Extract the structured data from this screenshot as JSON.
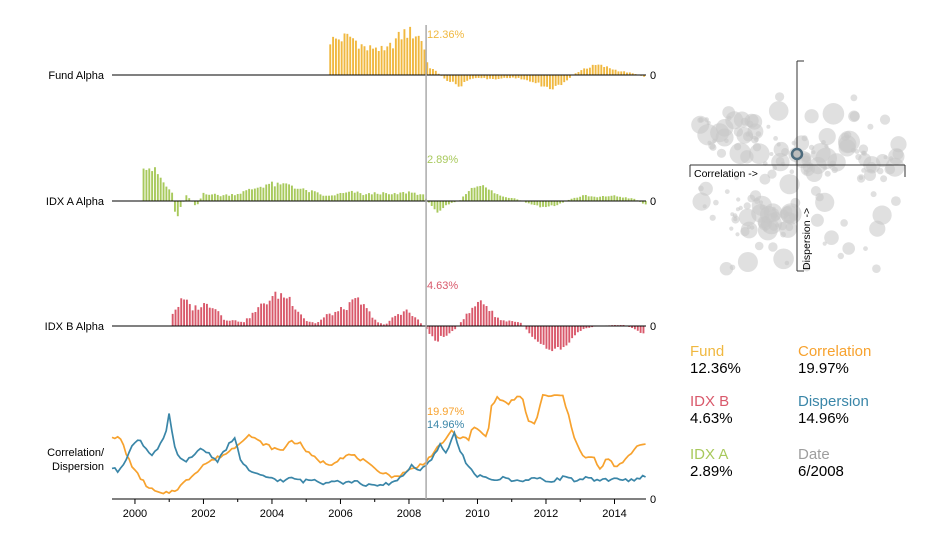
{
  "chart_data": {
    "type": "bar",
    "time_start": 1999.33,
    "time_end": 2014.92,
    "time_step": 0.0833,
    "xaxis": {
      "ticks": [
        2000,
        2002,
        2004,
        2006,
        2008,
        2010,
        2012,
        2014
      ],
      "labels": [
        "2000",
        "2002",
        "2004",
        "2006",
        "2008",
        "2010",
        "2012",
        "2014"
      ]
    },
    "hover_time": 2008.5,
    "zero_label": "0",
    "panels": [
      {
        "label": "Fund Alpha",
        "color": "#f0b840",
        "hover_value": "12.36%",
        "anchors": [
          [
            2005.7,
            5.5
          ],
          [
            2006.0,
            5.8
          ],
          [
            2006.3,
            6.1
          ],
          [
            2006.5,
            5.2
          ],
          [
            2006.8,
            4.0
          ],
          [
            2007.0,
            4.6
          ],
          [
            2007.3,
            3.6
          ],
          [
            2007.6,
            5.5
          ],
          [
            2007.9,
            6.8
          ],
          [
            2008.2,
            6.5
          ],
          [
            2008.4,
            5.5
          ],
          [
            2008.55,
            1.5
          ],
          [
            2008.8,
            0.5
          ],
          [
            2009.1,
            -0.8
          ],
          [
            2009.5,
            -1.8
          ],
          [
            2009.8,
            -0.5
          ],
          [
            2010.1,
            -0.5
          ],
          [
            2010.5,
            -0.7
          ],
          [
            2010.9,
            -0.4
          ],
          [
            2011.3,
            -0.6
          ],
          [
            2011.8,
            -1.5
          ],
          [
            2012.0,
            -2.1
          ],
          [
            2012.4,
            -1.8
          ],
          [
            2012.7,
            -0.4
          ],
          [
            2012.9,
            0.4
          ],
          [
            2013.1,
            1.0
          ],
          [
            2013.5,
            1.6
          ],
          [
            2013.8,
            1.2
          ],
          [
            2014.1,
            0.7
          ],
          [
            2014.5,
            0.3
          ],
          [
            2014.9,
            -0.3
          ]
        ],
        "start": 2005.7,
        "ymax": 7.0
      },
      {
        "label": "IDX A Alpha",
        "color": "#a8c95c",
        "hover_value": "2.89%",
        "anchors": [
          [
            2000.25,
            4.3
          ],
          [
            2000.5,
            3.5
          ],
          [
            2000.7,
            2.8
          ],
          [
            2000.9,
            1.6
          ],
          [
            2001.1,
            0.9
          ],
          [
            2001.2,
            -2.0
          ],
          [
            2001.3,
            -1.0
          ],
          [
            2001.5,
            0.6
          ],
          [
            2001.8,
            -0.6
          ],
          [
            2002.0,
            0.9
          ],
          [
            2002.5,
            0.6
          ],
          [
            2003.0,
            0.8
          ],
          [
            2003.5,
            1.4
          ],
          [
            2003.9,
            1.9
          ],
          [
            2004.2,
            1.7
          ],
          [
            2004.5,
            1.9
          ],
          [
            2004.8,
            1.3
          ],
          [
            2005.2,
            1.0
          ],
          [
            2005.6,
            0.5
          ],
          [
            2006.0,
            0.8
          ],
          [
            2006.4,
            1.0
          ],
          [
            2006.7,
            0.7
          ],
          [
            2007.1,
            0.9
          ],
          [
            2007.5,
            0.7
          ],
          [
            2008.0,
            1.0
          ],
          [
            2008.4,
            0.7
          ],
          [
            2008.6,
            -0.3
          ],
          [
            2008.8,
            -1.2
          ],
          [
            2009.1,
            -0.4
          ],
          [
            2009.5,
            0.1
          ],
          [
            2009.8,
            1.4
          ],
          [
            2010.0,
            1.9
          ],
          [
            2010.3,
            1.3
          ],
          [
            2010.7,
            0.5
          ],
          [
            2011.1,
            0.3
          ],
          [
            2011.5,
            -0.3
          ],
          [
            2011.9,
            -0.7
          ],
          [
            2012.3,
            -0.5
          ],
          [
            2012.7,
            0.2
          ],
          [
            2013.1,
            0.6
          ],
          [
            2013.5,
            0.4
          ],
          [
            2013.9,
            0.6
          ],
          [
            2014.3,
            0.4
          ],
          [
            2014.6,
            0.2
          ],
          [
            2014.9,
            -0.4
          ]
        ],
        "start": 2000.25,
        "ymax": 5.5
      },
      {
        "label": "IDX B Alpha",
        "color": "#d9596b",
        "hover_value": "4.63%",
        "anchors": [
          [
            2001.1,
            1.5
          ],
          [
            2001.4,
            3.0
          ],
          [
            2001.7,
            2.0
          ],
          [
            2002.0,
            2.4
          ],
          [
            2002.3,
            2.4
          ],
          [
            2002.6,
            0.8
          ],
          [
            2002.9,
            0.6
          ],
          [
            2003.2,
            0.5
          ],
          [
            2003.5,
            1.6
          ],
          [
            2003.8,
            2.7
          ],
          [
            2004.2,
            3.6
          ],
          [
            2004.5,
            3.2
          ],
          [
            2004.8,
            1.6
          ],
          [
            2005.0,
            0.6
          ],
          [
            2005.3,
            0.3
          ],
          [
            2005.6,
            1.2
          ],
          [
            2005.9,
            1.6
          ],
          [
            2006.2,
            2.2
          ],
          [
            2006.5,
            3.0
          ],
          [
            2006.8,
            1.7
          ],
          [
            2007.1,
            0.4
          ],
          [
            2007.3,
            0.1
          ],
          [
            2007.6,
            1.2
          ],
          [
            2007.9,
            1.8
          ],
          [
            2008.2,
            0.9
          ],
          [
            2008.4,
            0.1
          ],
          [
            2008.6,
            -0.8
          ],
          [
            2008.8,
            -1.8
          ],
          [
            2009.0,
            -1.1
          ],
          [
            2009.3,
            -0.6
          ],
          [
            2009.6,
            0.9
          ],
          [
            2009.9,
            2.1
          ],
          [
            2010.1,
            3.1
          ],
          [
            2010.4,
            1.6
          ],
          [
            2010.7,
            0.6
          ],
          [
            2011.0,
            0.6
          ],
          [
            2011.3,
            0.3
          ],
          [
            2011.6,
            -1.2
          ],
          [
            2011.9,
            -2.0
          ],
          [
            2012.2,
            -2.6
          ],
          [
            2012.5,
            -2.4
          ],
          [
            2012.8,
            -1.1
          ],
          [
            2013.1,
            -0.3
          ],
          [
            2013.5,
            0.0
          ],
          [
            2013.9,
            0.1
          ],
          [
            2014.3,
            0.1
          ],
          [
            2014.6,
            -0.4
          ],
          [
            2014.9,
            -0.9
          ]
        ],
        "start": 2001.1,
        "ymax": 5.0
      }
    ],
    "line_panel": {
      "label": "Correlation/ Dispersion",
      "label_lines": [
        "Correlation/",
        "Dispersion"
      ],
      "ymax": 0.5,
      "series": [
        {
          "name": "Correlation",
          "color": "#f7a22e",
          "hover_value": "19.97%",
          "anchors": [
            [
              1999.33,
              0.37
            ],
            [
              1999.6,
              0.35
            ],
            [
              1999.75,
              0.26
            ],
            [
              2000.0,
              0.16
            ],
            [
              2000.4,
              0.06
            ],
            [
              2000.8,
              0.02
            ],
            [
              2001.2,
              0.05
            ],
            [
              2001.6,
              0.12
            ],
            [
              2002.0,
              0.2
            ],
            [
              2002.4,
              0.24
            ],
            [
              2002.7,
              0.27
            ],
            [
              2003.0,
              0.32
            ],
            [
              2003.3,
              0.38
            ],
            [
              2003.6,
              0.34
            ],
            [
              2004.0,
              0.3
            ],
            [
              2004.3,
              0.28
            ],
            [
              2004.5,
              0.34
            ],
            [
              2004.8,
              0.33
            ],
            [
              2005.1,
              0.26
            ],
            [
              2005.4,
              0.22
            ],
            [
              2005.7,
              0.2
            ],
            [
              2006.0,
              0.24
            ],
            [
              2006.3,
              0.26
            ],
            [
              2006.7,
              0.22
            ],
            [
              2007.0,
              0.17
            ],
            [
              2007.3,
              0.15
            ],
            [
              2007.6,
              0.12
            ],
            [
              2007.9,
              0.16
            ],
            [
              2008.2,
              0.18
            ],
            [
              2008.5,
              0.22
            ],
            [
              2008.8,
              0.29
            ],
            [
              2009.0,
              0.33
            ],
            [
              2009.2,
              0.4
            ],
            [
              2009.5,
              0.36
            ],
            [
              2009.75,
              0.35
            ],
            [
              2009.85,
              0.42
            ],
            [
              2010.0,
              0.41
            ],
            [
              2010.3,
              0.36
            ],
            [
              2010.4,
              0.56
            ],
            [
              2010.6,
              0.6
            ],
            [
              2010.9,
              0.56
            ],
            [
              2011.1,
              0.6
            ],
            [
              2011.3,
              0.6
            ],
            [
              2011.5,
              0.45
            ],
            [
              2011.7,
              0.45
            ],
            [
              2011.9,
              0.61
            ],
            [
              2012.2,
              0.61
            ],
            [
              2012.5,
              0.61
            ],
            [
              2012.8,
              0.38
            ],
            [
              2013.1,
              0.24
            ],
            [
              2013.4,
              0.24
            ],
            [
              2013.6,
              0.16
            ],
            [
              2013.8,
              0.25
            ],
            [
              2014.0,
              0.18
            ],
            [
              2014.3,
              0.22
            ],
            [
              2014.6,
              0.3
            ],
            [
              2014.8,
              0.33
            ],
            [
              2014.9,
              0.32
            ]
          ]
        },
        {
          "name": "Dispersion",
          "color": "#3a86a8",
          "hover_value": "14.96%",
          "anchors": [
            [
              1999.33,
              0.18
            ],
            [
              1999.5,
              0.16
            ],
            [
              1999.7,
              0.22
            ],
            [
              1999.9,
              0.3
            ],
            [
              2000.1,
              0.36
            ],
            [
              2000.3,
              0.3
            ],
            [
              2000.5,
              0.26
            ],
            [
              2000.7,
              0.3
            ],
            [
              2000.9,
              0.38
            ],
            [
              2001.0,
              0.5
            ],
            [
              2001.2,
              0.26
            ],
            [
              2001.4,
              0.22
            ],
            [
              2001.7,
              0.24
            ],
            [
              2001.9,
              0.3
            ],
            [
              2002.2,
              0.26
            ],
            [
              2002.4,
              0.22
            ],
            [
              2002.6,
              0.28
            ],
            [
              2002.9,
              0.36
            ],
            [
              2003.1,
              0.22
            ],
            [
              2003.4,
              0.15
            ],
            [
              2003.7,
              0.13
            ],
            [
              2004.0,
              0.12
            ],
            [
              2004.3,
              0.1
            ],
            [
              2004.6,
              0.12
            ],
            [
              2004.9,
              0.1
            ],
            [
              2005.2,
              0.11
            ],
            [
              2005.5,
              0.09
            ],
            [
              2005.8,
              0.11
            ],
            [
              2006.1,
              0.09
            ],
            [
              2006.4,
              0.1
            ],
            [
              2006.7,
              0.08
            ],
            [
              2007.0,
              0.07
            ],
            [
              2007.3,
              0.08
            ],
            [
              2007.6,
              0.1
            ],
            [
              2007.9,
              0.15
            ],
            [
              2008.1,
              0.2
            ],
            [
              2008.3,
              0.16
            ],
            [
              2008.5,
              0.19
            ],
            [
              2008.7,
              0.24
            ],
            [
              2008.9,
              0.32
            ],
            [
              2009.1,
              0.26
            ],
            [
              2009.3,
              0.4
            ],
            [
              2009.5,
              0.28
            ],
            [
              2009.7,
              0.2
            ],
            [
              2009.9,
              0.14
            ],
            [
              2010.2,
              0.12
            ],
            [
              2010.5,
              0.11
            ],
            [
              2010.8,
              0.12
            ],
            [
              2011.1,
              0.1
            ],
            [
              2011.4,
              0.11
            ],
            [
              2011.7,
              0.12
            ],
            [
              2012.0,
              0.1
            ],
            [
              2012.3,
              0.11
            ],
            [
              2012.6,
              0.13
            ],
            [
              2012.9,
              0.1
            ],
            [
              2013.2,
              0.12
            ],
            [
              2013.5,
              0.1
            ],
            [
              2013.8,
              0.11
            ],
            [
              2014.1,
              0.12
            ],
            [
              2014.4,
              0.1
            ],
            [
              2014.6,
              0.11
            ],
            [
              2014.8,
              0.13
            ],
            [
              2014.9,
              0.12
            ]
          ]
        }
      ]
    },
    "scatter": {
      "xlabel": "Correlation ->",
      "ylabel": "Dispersion ->",
      "highlight": [
        0.1,
        0.04
      ]
    }
  },
  "stats": {
    "fund": {
      "name": "Fund",
      "value": "12.36%",
      "color": "#f0b840"
    },
    "correlation": {
      "name": "Correlation",
      "value": "19.97%",
      "color": "#f7a22e"
    },
    "idx_b": {
      "name": "IDX B",
      "value": "4.63%",
      "color": "#d9596b"
    },
    "dispersion": {
      "name": "Dispersion",
      "value": "14.96%",
      "color": "#3a86a8"
    },
    "idx_a": {
      "name": "IDX A",
      "value": "2.89%",
      "color": "#a8c95c"
    },
    "date": {
      "name": "Date",
      "value": "6/2008",
      "color": "#9e9e9e"
    }
  }
}
